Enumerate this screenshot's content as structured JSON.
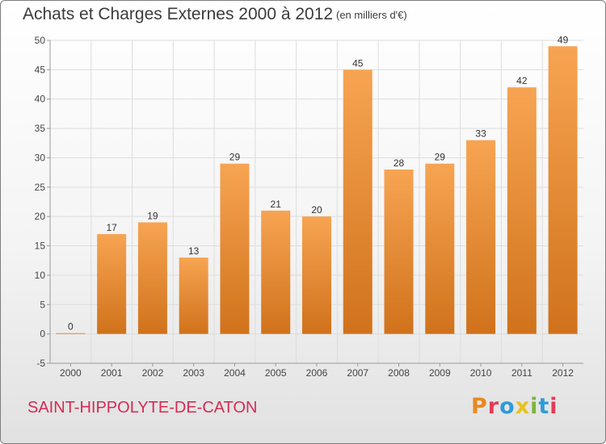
{
  "header": {
    "title": "Achats et Charges Externes 2000 à 2012",
    "unit": "(en milliers d'€)"
  },
  "footer": {
    "town": "SAINT-HIPPOLYTE-DE-CATON",
    "brand": "Proxiti",
    "brand_colors": [
      "#e8891d",
      "#e33b5a",
      "#2f9bd6",
      "#e8c21d",
      "#7bb63a",
      "#2f9bd6",
      "#e33b5a"
    ]
  },
  "chart_data": {
    "type": "bar",
    "categories": [
      "2000",
      "2001",
      "2002",
      "2003",
      "2004",
      "2005",
      "2006",
      "2007",
      "2008",
      "2009",
      "2010",
      "2011",
      "2012"
    ],
    "values": [
      0,
      17,
      19,
      13,
      29,
      21,
      20,
      45,
      28,
      29,
      33,
      42,
      49
    ],
    "data_labels": [
      "0",
      "17",
      "19",
      "13",
      "29",
      "21",
      "20",
      "45",
      "28",
      "29",
      "33",
      "42",
      "49"
    ],
    "yticks": [
      -5,
      0,
      5,
      10,
      15,
      20,
      25,
      30,
      35,
      40,
      45,
      50
    ],
    "ylim": [
      -5,
      50
    ],
    "grid": true,
    "bar_color_top": "#f7a452",
    "bar_color_bottom": "#d0721b",
    "grid_color": "#dddddd",
    "axis_color": "#9a9a9a"
  }
}
